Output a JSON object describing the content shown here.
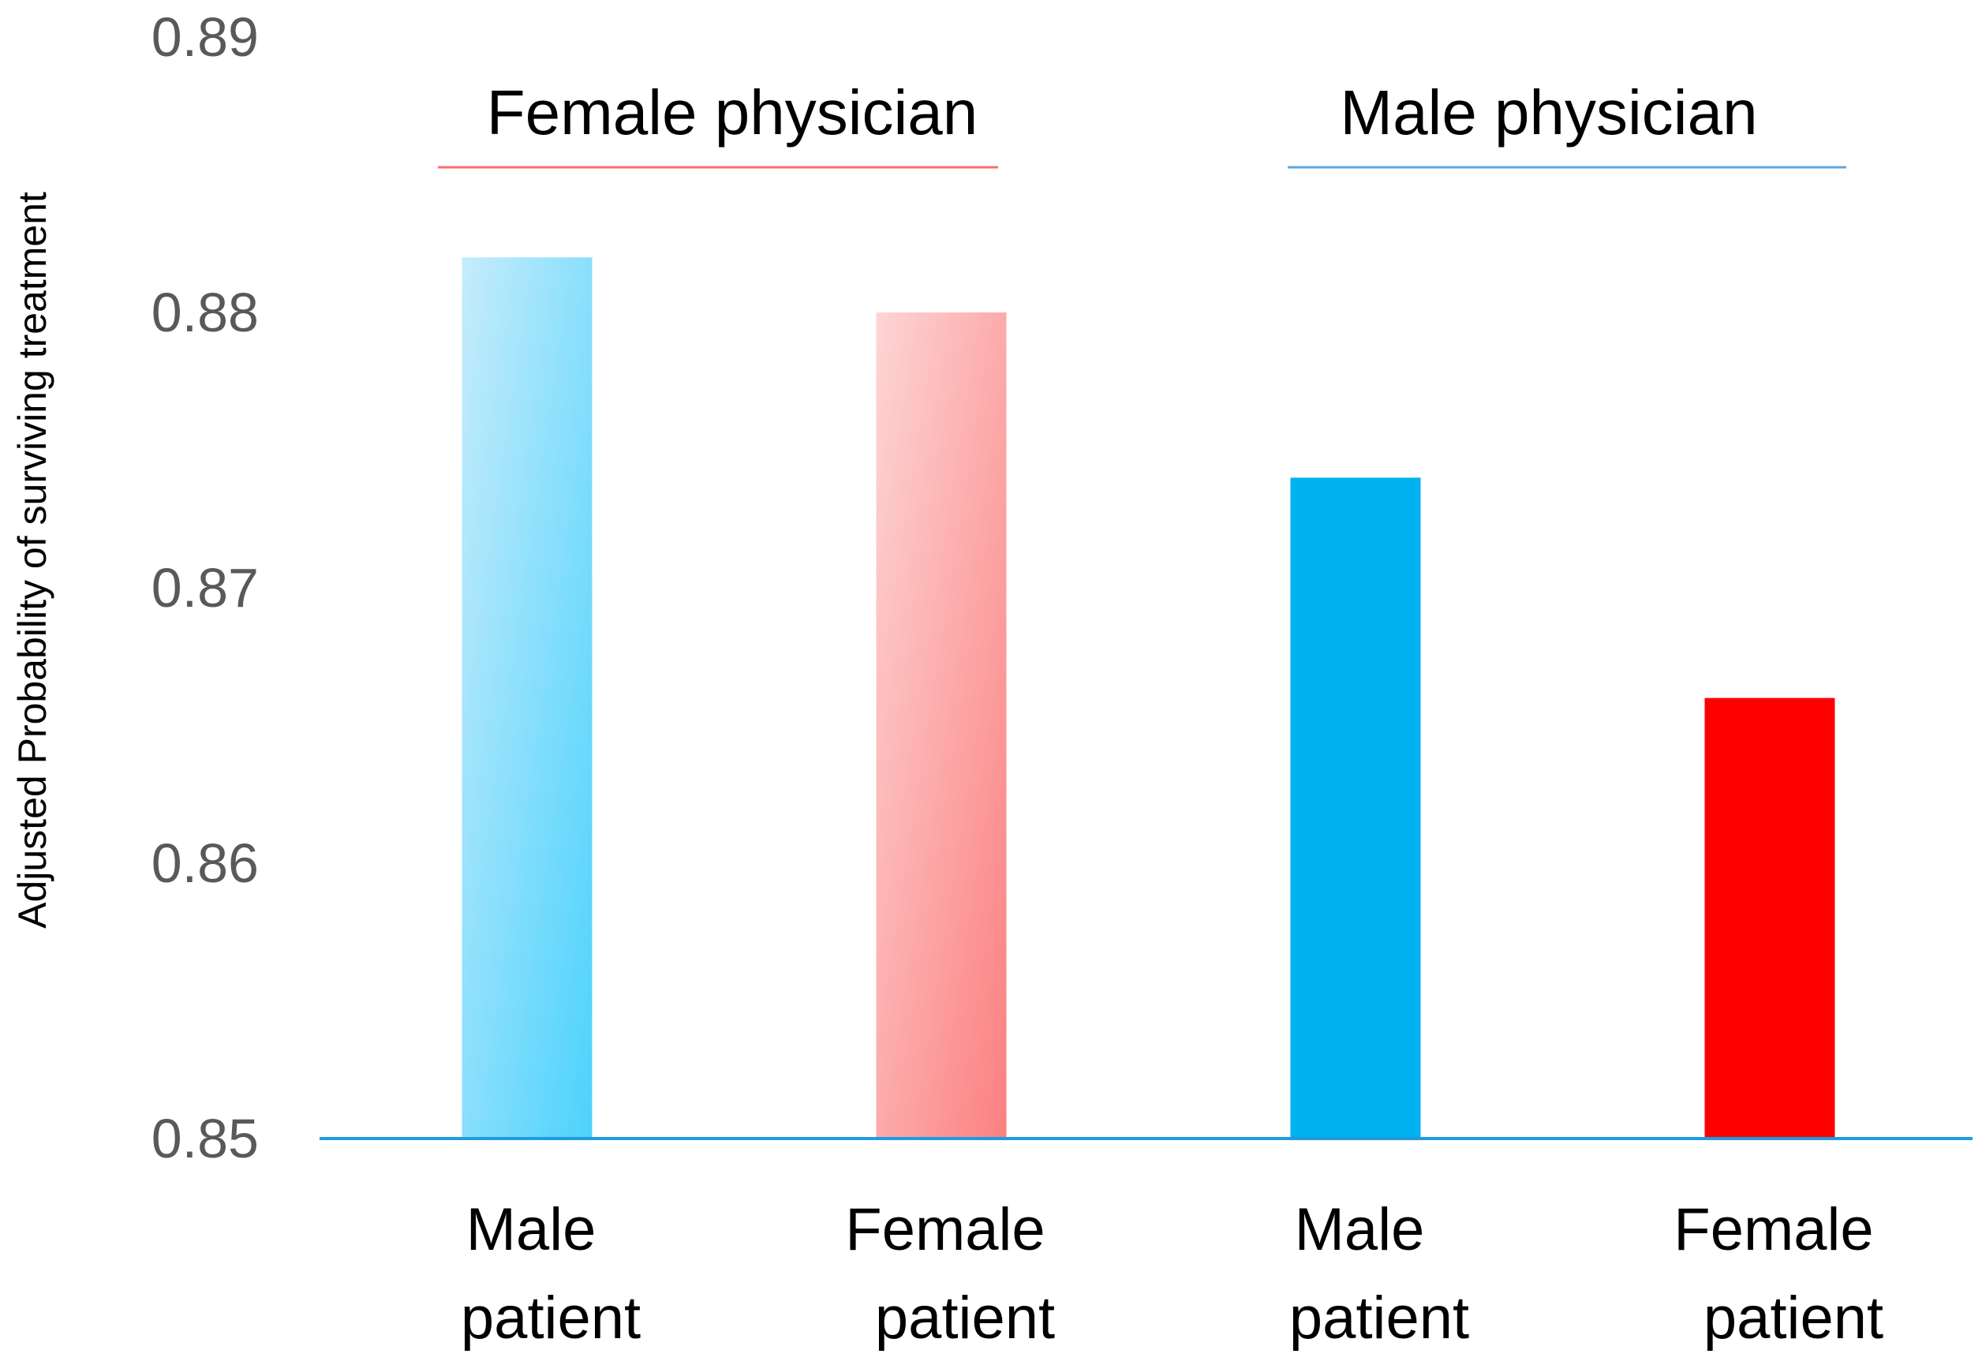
{
  "chart_data": {
    "type": "bar",
    "title": "",
    "xlabel": "",
    "ylabel": "Adjusted Probability of surviving treatment",
    "ylim": [
      0.85,
      0.89
    ],
    "yticks": [
      "0.85",
      "0.86",
      "0.87",
      "0.88",
      "0.89"
    ],
    "ytick_values": [
      0.85,
      0.86,
      0.87,
      0.88,
      0.89
    ],
    "grid": false,
    "groups": [
      {
        "label": "Female physician",
        "color": "#FF6B6B",
        "categories": [
          0,
          1
        ]
      },
      {
        "label": "Male physician",
        "color": "#5BA8E0",
        "categories": [
          2,
          3
        ]
      }
    ],
    "categories": [
      {
        "line1": "Male",
        "line2": "patient"
      },
      {
        "line1": "Female",
        "line2": "patient"
      },
      {
        "line1": "Male",
        "line2": "patient"
      },
      {
        "line1": "Female",
        "line2": "patient"
      }
    ],
    "values": [
      0.882,
      0.88,
      0.874,
      0.866
    ],
    "bar_styles": [
      {
        "from": "#C6ECFB",
        "to": "#4DD2FC"
      },
      {
        "from": "#FDD5D5",
        "to": "#FC8080"
      },
      {
        "from": "#00B2F0",
        "to": "#00B2F0"
      },
      {
        "from": "#FF0000",
        "to": "#FF0000"
      }
    ],
    "axis_color": "#1F9CE0"
  }
}
